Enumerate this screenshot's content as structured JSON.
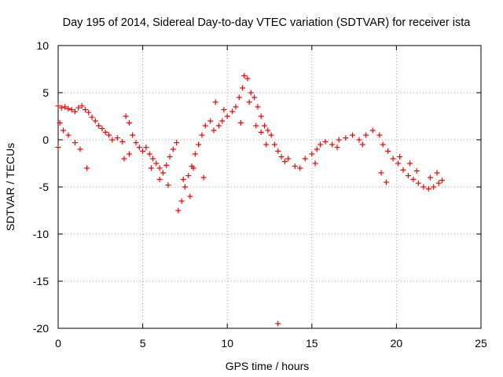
{
  "chart_data": {
    "type": "scatter",
    "title": "Day 195 of 2014, Sidereal Day-to-day VTEC variation (SDTVAR) for receiver ista",
    "xlabel": "GPS time / hours",
    "ylabel": "SDTVAR / TECUs",
    "xlim": [
      0,
      25
    ],
    "ylim": [
      -20,
      10
    ],
    "xticks": [
      0,
      5,
      10,
      15,
      20,
      25
    ],
    "yticks": [
      -20,
      -15,
      -10,
      -5,
      0,
      5,
      10
    ],
    "grid": true,
    "marker": "+",
    "color": "#ff0000",
    "series": [
      {
        "name": "SDTVAR",
        "points": [
          [
            0.0,
            3.6
          ],
          [
            0.2,
            3.4
          ],
          [
            0.4,
            3.5
          ],
          [
            0.6,
            3.3
          ],
          [
            0.8,
            3.2
          ],
          [
            1.0,
            3.0
          ],
          [
            1.2,
            3.4
          ],
          [
            1.4,
            3.6
          ],
          [
            1.6,
            3.2
          ],
          [
            1.8,
            2.9
          ],
          [
            2.0,
            2.4
          ],
          [
            2.2,
            2.0
          ],
          [
            2.4,
            1.5
          ],
          [
            2.6,
            1.2
          ],
          [
            2.8,
            0.8
          ],
          [
            3.0,
            0.5
          ],
          [
            3.2,
            0.0
          ],
          [
            3.5,
            0.2
          ],
          [
            3.8,
            -0.2
          ],
          [
            4.0,
            2.5
          ],
          [
            4.2,
            1.8
          ],
          [
            4.4,
            0.5
          ],
          [
            4.6,
            -0.3
          ],
          [
            4.8,
            -0.8
          ],
          [
            5.0,
            -1.2
          ],
          [
            5.2,
            -0.8
          ],
          [
            5.4,
            -1.5
          ],
          [
            5.6,
            -2.0
          ],
          [
            5.8,
            -2.5
          ],
          [
            6.0,
            -3.0
          ],
          [
            6.2,
            -3.5
          ],
          [
            6.4,
            -2.7
          ],
          [
            6.6,
            -1.8
          ],
          [
            6.8,
            -1.0
          ],
          [
            7.0,
            -0.3
          ],
          [
            7.1,
            -7.5
          ],
          [
            7.3,
            -6.5
          ],
          [
            7.5,
            -5.0
          ],
          [
            7.7,
            -3.8
          ],
          [
            7.9,
            -2.8
          ],
          [
            8.1,
            -1.5
          ],
          [
            8.3,
            -0.5
          ],
          [
            8.5,
            0.5
          ],
          [
            8.7,
            1.5
          ],
          [
            9.0,
            2.0
          ],
          [
            9.3,
            4.0
          ],
          [
            9.5,
            1.5
          ],
          [
            9.7,
            2.0
          ],
          [
            10.0,
            2.5
          ],
          [
            10.3,
            3.0
          ],
          [
            10.5,
            3.5
          ],
          [
            10.7,
            4.5
          ],
          [
            10.9,
            5.5
          ],
          [
            11.0,
            6.8
          ],
          [
            11.2,
            6.5
          ],
          [
            11.4,
            5.0
          ],
          [
            11.6,
            4.5
          ],
          [
            11.8,
            3.5
          ],
          [
            12.0,
            2.5
          ],
          [
            12.2,
            1.5
          ],
          [
            12.4,
            1.0
          ],
          [
            12.6,
            0.5
          ],
          [
            12.8,
            -0.5
          ],
          [
            13.0,
            -1.2
          ],
          [
            13.2,
            -1.8
          ],
          [
            13.4,
            -2.3
          ],
          [
            13.6,
            -2.0
          ],
          [
            14.0,
            -2.8
          ],
          [
            14.3,
            -3.0
          ],
          [
            14.6,
            -2.0
          ],
          [
            15.0,
            -1.5
          ],
          [
            15.3,
            -1.0
          ],
          [
            15.5,
            -0.5
          ],
          [
            15.8,
            -0.2
          ],
          [
            16.2,
            -0.5
          ],
          [
            16.6,
            0.0
          ],
          [
            17.0,
            0.2
          ],
          [
            17.4,
            0.5
          ],
          [
            17.8,
            0.0
          ],
          [
            18.2,
            0.5
          ],
          [
            18.6,
            1.0
          ],
          [
            19.0,
            0.5
          ],
          [
            19.2,
            -0.5
          ],
          [
            19.5,
            -1.2
          ],
          [
            19.8,
            -2.0
          ],
          [
            20.1,
            -2.5
          ],
          [
            20.4,
            -3.2
          ],
          [
            20.7,
            -3.8
          ],
          [
            21.0,
            -4.2
          ],
          [
            21.3,
            -4.6
          ],
          [
            21.6,
            -5.0
          ],
          [
            21.9,
            -5.2
          ],
          [
            22.2,
            -5.0
          ],
          [
            22.5,
            -4.6
          ],
          [
            22.7,
            -4.3
          ],
          [
            0.1,
            1.8
          ],
          [
            0.0,
            -0.8
          ],
          [
            0.3,
            1.0
          ],
          [
            0.6,
            0.5
          ],
          [
            1.0,
            -0.3
          ],
          [
            1.3,
            -1.0
          ],
          [
            1.7,
            -3.0
          ],
          [
            3.9,
            -2.0
          ],
          [
            4.2,
            -1.5
          ],
          [
            5.5,
            -3.0
          ],
          [
            6.0,
            -4.2
          ],
          [
            6.5,
            -4.8
          ],
          [
            7.4,
            -4.2
          ],
          [
            7.8,
            -6.0
          ],
          [
            8.0,
            -3.0
          ],
          [
            8.6,
            -4.0
          ],
          [
            9.2,
            1.0
          ],
          [
            11.3,
            4.0
          ],
          [
            11.7,
            1.5
          ],
          [
            12.0,
            0.8
          ],
          [
            12.3,
            -0.5
          ],
          [
            13.0,
            -19.5
          ],
          [
            15.2,
            -2.5
          ],
          [
            16.5,
            -0.8
          ],
          [
            18.0,
            -0.5
          ],
          [
            19.1,
            -3.5
          ],
          [
            19.4,
            -4.5
          ],
          [
            20.2,
            -1.8
          ],
          [
            20.8,
            -2.5
          ],
          [
            21.2,
            -3.3
          ],
          [
            22.0,
            -4.0
          ],
          [
            22.4,
            -3.5
          ],
          [
            10.8,
            1.8
          ],
          [
            9.8,
            3.2
          ]
        ]
      }
    ]
  }
}
